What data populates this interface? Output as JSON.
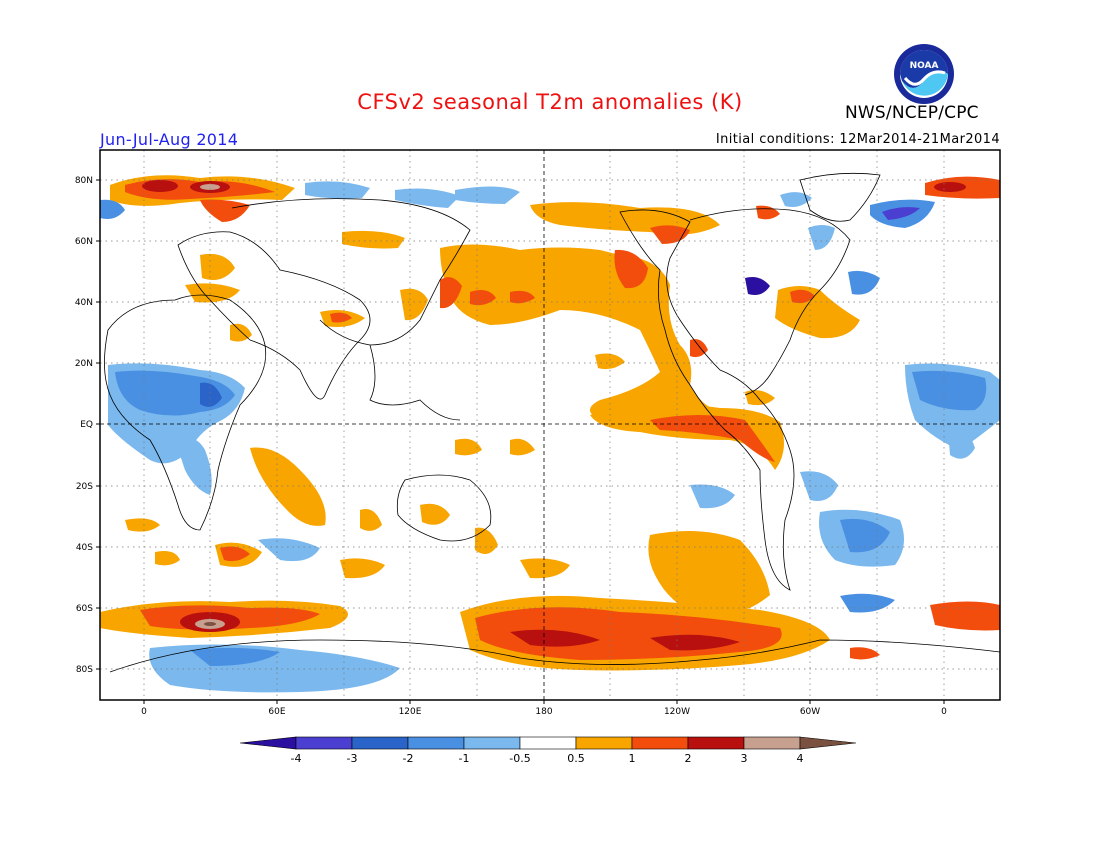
{
  "title": "CFSv2 seasonal T2m anomalies (K)",
  "season": "Jun-Jul-Aug 2014",
  "initial_conditions": "Initial conditions: 12Mar2014-21Mar2014",
  "agency": "NWS/NCEP/CPC",
  "logo": {
    "icon": "noaa-logo-icon",
    "text": "NOAA"
  },
  "map": {
    "lat_labels": [
      "80N",
      "60N",
      "40N",
      "20N",
      "EQ",
      "20S",
      "40S",
      "60S",
      "80S"
    ],
    "lon_labels": [
      "0",
      "60E",
      "120E",
      "180",
      "120W",
      "60W",
      "0"
    ]
  },
  "colorbar": {
    "labels": [
      "-4",
      "-3",
      "-2",
      "-1",
      "-0.5",
      "0.5",
      "1",
      "2",
      "3",
      "4"
    ],
    "colors": [
      "#2a0fa0",
      "#4a3fd0",
      "#2a64c8",
      "#4a90e2",
      "#7ab8ee",
      "#ffffff",
      "#f8a500",
      "#f24d0c",
      "#b80f0f",
      "#c8a090",
      "#7a5040"
    ]
  }
}
